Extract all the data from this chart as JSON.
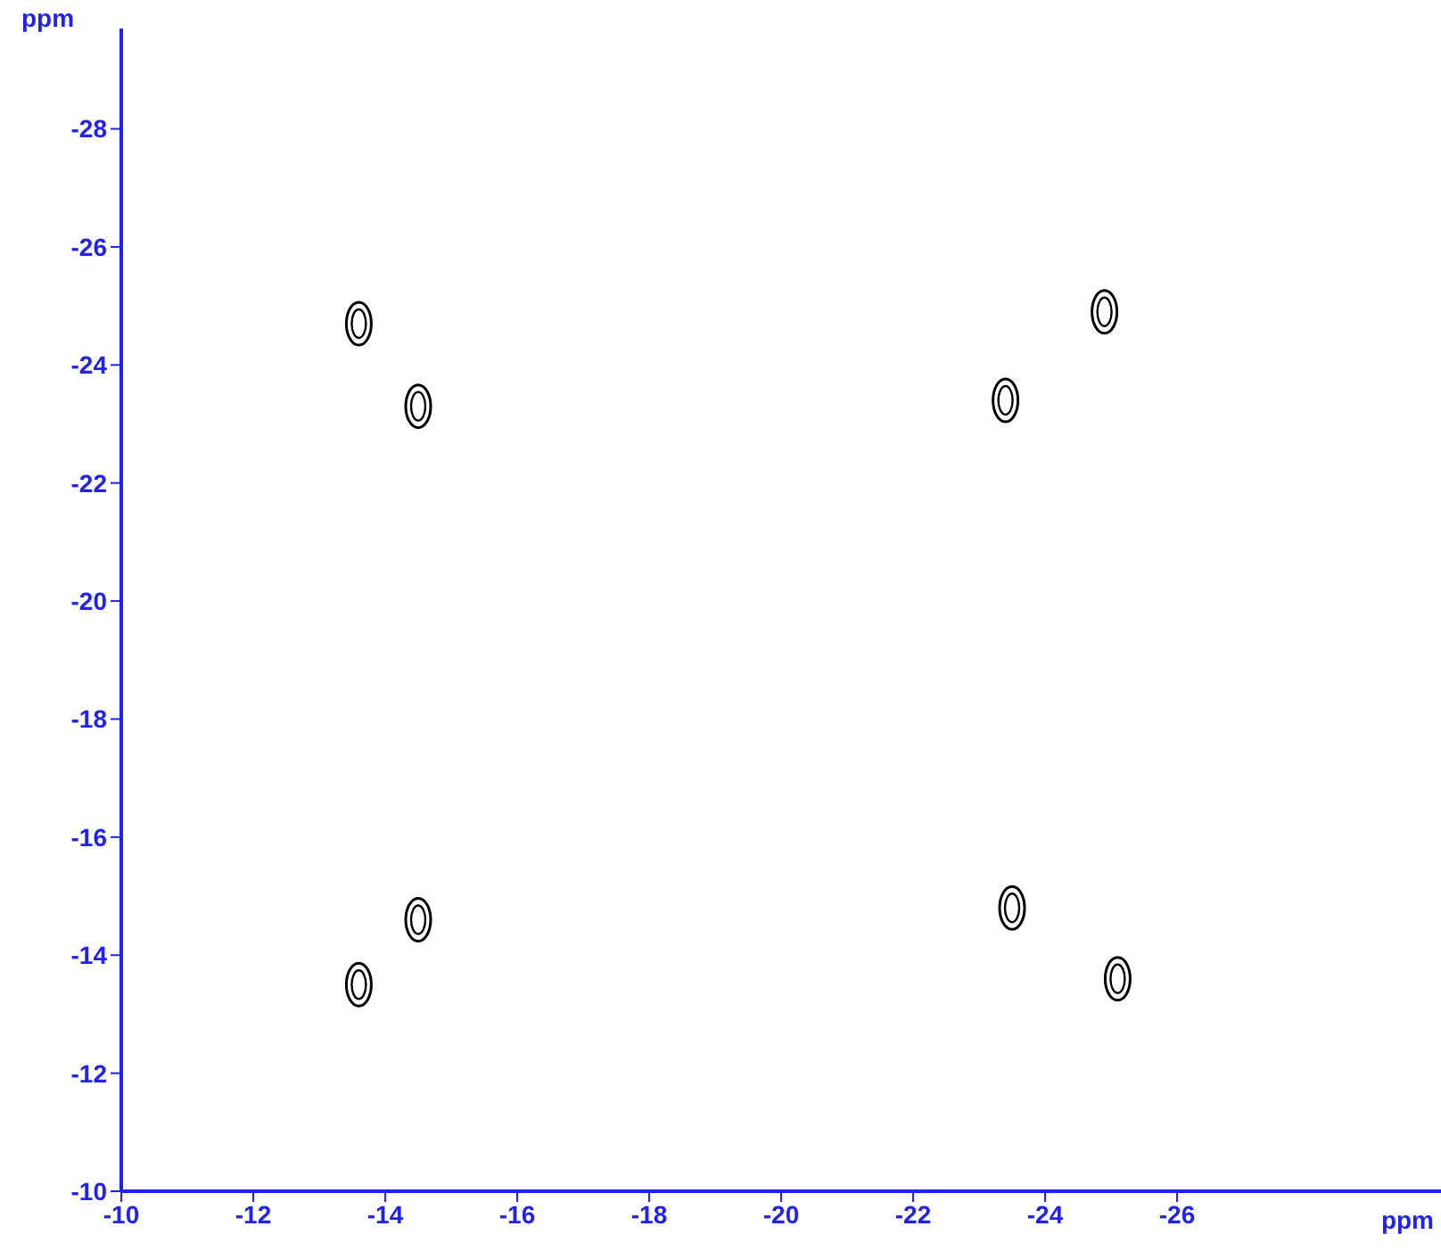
{
  "chart_data": {
    "type": "scatter",
    "xlabel": "ppm",
    "ylabel": "ppm",
    "x": [
      -13.6,
      -14.5,
      -23.4,
      -24.9,
      -13.6,
      -14.5,
      -23.5,
      -25.1
    ],
    "values": [
      -24.7,
      -23.3,
      -23.4,
      -24.9,
      -13.5,
      -14.6,
      -14.8,
      -13.6
    ],
    "color": "#000000",
    "marker": "circle",
    "xlim": [
      -10,
      -30
    ],
    "xticks": [
      -10,
      -12,
      -14,
      -16,
      -18,
      -20,
      -22,
      -24,
      -26
    ],
    "ylim": [
      -10,
      -29.7
    ],
    "yticks": [
      -10,
      -12,
      -14,
      -16,
      -18,
      -20,
      -22,
      -24,
      -26,
      -28
    ],
    "grid": false,
    "legend": false
  }
}
